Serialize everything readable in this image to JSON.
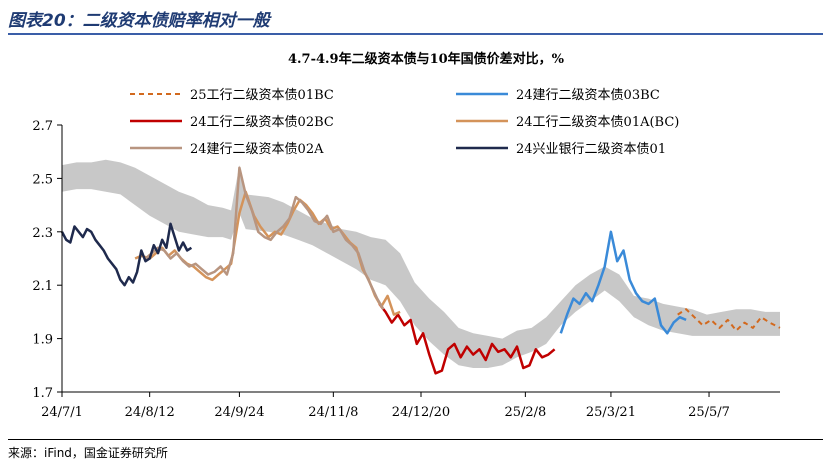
{
  "figure": {
    "title": "图表20：二级资本债赔率相对一般",
    "source": "来源：iFind，国金证券研究所"
  },
  "chart_data": {
    "type": "line",
    "title": "4.7-4.9年二级资本债与10年国债价差对比，%",
    "xlabel": "",
    "ylabel": "",
    "ylim": [
      1.7,
      2.7
    ],
    "yticks": [
      1.7,
      1.9,
      2.1,
      2.3,
      2.5,
      2.7
    ],
    "xlim": [
      "2024-07-01",
      "2025-06-10"
    ],
    "xticks": [
      "24/7/1",
      "24/8/12",
      "24/9/24",
      "24/11/8",
      "24/12/20",
      "25/2/8",
      "25/3/21",
      "25/5/7"
    ],
    "xtick_dates": [
      "2024-07-01",
      "2024-08-12",
      "2024-09-24",
      "2024-11-08",
      "2024-12-20",
      "2025-02-08",
      "2025-03-21",
      "2025-05-07"
    ],
    "grid": false,
    "legend_position": "top",
    "band": {
      "name": "",
      "color": "#c8c8c8",
      "x": [
        "2024-07-01",
        "2024-07-08",
        "2024-07-15",
        "2024-07-22",
        "2024-07-29",
        "2024-08-05",
        "2024-08-12",
        "2024-08-19",
        "2024-08-26",
        "2024-09-02",
        "2024-09-09",
        "2024-09-16",
        "2024-09-20",
        "2024-09-24",
        "2024-09-27",
        "2024-10-08",
        "2024-10-15",
        "2024-10-22",
        "2024-10-29",
        "2024-11-05",
        "2024-11-12",
        "2024-11-19",
        "2024-11-26",
        "2024-12-03",
        "2024-12-10",
        "2024-12-17",
        "2024-12-24",
        "2024-12-31",
        "2025-01-07",
        "2025-01-14",
        "2025-01-21",
        "2025-01-28",
        "2025-02-04",
        "2025-02-11",
        "2025-02-18",
        "2025-02-25",
        "2025-03-04",
        "2025-03-11",
        "2025-03-18",
        "2025-03-25",
        "2025-04-01",
        "2025-04-08",
        "2025-04-15",
        "2025-04-22",
        "2025-04-29",
        "2025-05-06",
        "2025-05-13",
        "2025-05-20",
        "2025-05-27",
        "2025-06-03",
        "2025-06-10"
      ],
      "upper": [
        2.55,
        2.56,
        2.56,
        2.57,
        2.56,
        2.54,
        2.51,
        2.48,
        2.45,
        2.43,
        2.4,
        2.39,
        2.38,
        2.55,
        2.44,
        2.43,
        2.41,
        2.38,
        2.35,
        2.33,
        2.31,
        2.3,
        2.28,
        2.27,
        2.22,
        2.11,
        2.05,
        2.0,
        1.94,
        1.92,
        1.91,
        1.9,
        1.93,
        1.94,
        1.98,
        2.04,
        2.1,
        2.14,
        2.17,
        2.14,
        2.06,
        2.05,
        2.03,
        2.02,
        2.01,
        1.99,
        2.0,
        2.01,
        2.01,
        2.0,
        2.0
      ],
      "lower": [
        2.45,
        2.46,
        2.46,
        2.45,
        2.44,
        2.4,
        2.36,
        2.33,
        2.3,
        2.29,
        2.28,
        2.28,
        2.27,
        2.37,
        2.31,
        2.3,
        2.29,
        2.27,
        2.25,
        2.22,
        2.19,
        2.16,
        2.12,
        2.1,
        2.04,
        1.95,
        1.89,
        1.84,
        1.8,
        1.79,
        1.79,
        1.8,
        1.83,
        1.85,
        1.88,
        1.95,
        2.0,
        2.04,
        2.08,
        2.04,
        1.98,
        1.95,
        1.93,
        1.92,
        1.91,
        1.91,
        1.91,
        1.91,
        1.91,
        1.91,
        1.91
      ]
    },
    "series": [
      {
        "name": "25工行二级资本债01BC",
        "color": "#d2691e",
        "dashed": true,
        "width": 2,
        "x": [
          "2025-04-22",
          "2025-04-26",
          "2025-04-30",
          "2025-05-04",
          "2025-05-08",
          "2025-05-12",
          "2025-05-16",
          "2025-05-20",
          "2025-05-24",
          "2025-05-28",
          "2025-06-01",
          "2025-06-05",
          "2025-06-10"
        ],
        "values": [
          1.99,
          2.01,
          1.98,
          1.95,
          1.97,
          1.94,
          1.97,
          1.93,
          1.96,
          1.94,
          1.98,
          1.96,
          1.94
        ]
      },
      {
        "name": "24建行二级资本债03BC",
        "color": "#3a8ad8",
        "dashed": false,
        "width": 2.5,
        "x": [
          "2025-02-25",
          "2025-02-28",
          "2025-03-03",
          "2025-03-06",
          "2025-03-09",
          "2025-03-12",
          "2025-03-15",
          "2025-03-18",
          "2025-03-21",
          "2025-03-24",
          "2025-03-27",
          "2025-03-30",
          "2025-04-02",
          "2025-04-05",
          "2025-04-08",
          "2025-04-11",
          "2025-04-14",
          "2025-04-17",
          "2025-04-20",
          "2025-04-23",
          "2025-04-26"
        ],
        "values": [
          1.92,
          1.99,
          2.05,
          2.03,
          2.07,
          2.04,
          2.1,
          2.17,
          2.3,
          2.19,
          2.23,
          2.12,
          2.07,
          2.04,
          2.03,
          2.05,
          1.95,
          1.92,
          1.96,
          1.98,
          1.97
        ]
      },
      {
        "name": "24工行二级资本债02BC",
        "color": "#c00000",
        "dashed": false,
        "width": 2.5,
        "x": [
          "2024-11-30",
          "2024-12-03",
          "2024-12-06",
          "2024-12-09",
          "2024-12-12",
          "2024-12-15",
          "2024-12-18",
          "2024-12-21",
          "2024-12-24",
          "2024-12-27",
          "2024-12-30",
          "2025-01-02",
          "2025-01-05",
          "2025-01-08",
          "2025-01-11",
          "2025-01-14",
          "2025-01-17",
          "2025-01-20",
          "2025-01-23",
          "2025-01-26",
          "2025-01-29",
          "2025-02-01",
          "2025-02-04",
          "2025-02-07",
          "2025-02-10",
          "2025-02-13",
          "2025-02-16",
          "2025-02-19",
          "2025-02-22"
        ],
        "values": [
          2.03,
          2.0,
          1.96,
          1.99,
          1.95,
          1.97,
          1.88,
          1.92,
          1.84,
          1.77,
          1.78,
          1.86,
          1.88,
          1.83,
          1.87,
          1.84,
          1.86,
          1.82,
          1.88,
          1.85,
          1.86,
          1.83,
          1.87,
          1.79,
          1.8,
          1.86,
          1.83,
          1.84,
          1.86
        ]
      },
      {
        "name": "24工行二级资本债01A(BC)",
        "color": "#d4935a",
        "dashed": false,
        "width": 2.5,
        "x": [
          "2024-08-05",
          "2024-08-08",
          "2024-08-12",
          "2024-08-15",
          "2024-08-18",
          "2024-08-21",
          "2024-08-24",
          "2024-08-27",
          "2024-08-30",
          "2024-09-02",
          "2024-09-05",
          "2024-09-08",
          "2024-09-11",
          "2024-09-14",
          "2024-09-17",
          "2024-09-20",
          "2024-09-24",
          "2024-09-27",
          "2024-10-01",
          "2024-10-04",
          "2024-10-08",
          "2024-10-11",
          "2024-10-14",
          "2024-10-17",
          "2024-10-20",
          "2024-10-23",
          "2024-10-26",
          "2024-10-29",
          "2024-11-01",
          "2024-11-04",
          "2024-11-07",
          "2024-11-10",
          "2024-11-13",
          "2024-11-16",
          "2024-11-19",
          "2024-11-22",
          "2024-11-25",
          "2024-11-28",
          "2024-12-01",
          "2024-12-04",
          "2024-12-07",
          "2024-12-10"
        ],
        "values": [
          2.2,
          2.21,
          2.2,
          2.22,
          2.24,
          2.21,
          2.23,
          2.2,
          2.18,
          2.17,
          2.15,
          2.13,
          2.12,
          2.14,
          2.16,
          2.18,
          2.37,
          2.45,
          2.36,
          2.32,
          2.28,
          2.3,
          2.29,
          2.33,
          2.38,
          2.42,
          2.4,
          2.37,
          2.33,
          2.35,
          2.31,
          2.32,
          2.29,
          2.26,
          2.24,
          2.16,
          2.12,
          2.06,
          2.02,
          2.06,
          1.99,
          2.0
        ]
      },
      {
        "name": "24建行二级资本债02A",
        "color": "#b89580",
        "dashed": false,
        "width": 2.5,
        "x": [
          "2024-08-10",
          "2024-08-13",
          "2024-08-16",
          "2024-08-19",
          "2024-08-22",
          "2024-08-25",
          "2024-08-28",
          "2024-08-31",
          "2024-09-03",
          "2024-09-06",
          "2024-09-09",
          "2024-09-12",
          "2024-09-15",
          "2024-09-18",
          "2024-09-21",
          "2024-09-24",
          "2024-09-27",
          "2024-09-30",
          "2024-10-03",
          "2024-10-06",
          "2024-10-09",
          "2024-10-12",
          "2024-10-15",
          "2024-10-18",
          "2024-10-21",
          "2024-10-24",
          "2024-10-27",
          "2024-10-30",
          "2024-11-02",
          "2024-11-05",
          "2024-11-08",
          "2024-11-11",
          "2024-11-14",
          "2024-11-17",
          "2024-11-20",
          "2024-11-23",
          "2024-11-26",
          "2024-11-29",
          "2024-12-02"
        ],
        "values": [
          2.2,
          2.22,
          2.24,
          2.23,
          2.2,
          2.22,
          2.19,
          2.17,
          2.18,
          2.16,
          2.14,
          2.15,
          2.17,
          2.14,
          2.22,
          2.54,
          2.44,
          2.38,
          2.3,
          2.28,
          2.27,
          2.3,
          2.32,
          2.35,
          2.43,
          2.41,
          2.38,
          2.34,
          2.33,
          2.36,
          2.3,
          2.31,
          2.27,
          2.25,
          2.22,
          2.15,
          2.1,
          2.05,
          2.01
        ]
      },
      {
        "name": "24兴业银行二级资本债01",
        "color": "#1f2a4d",
        "dashed": false,
        "width": 2.5,
        "x": [
          "2024-07-01",
          "2024-07-03",
          "2024-07-05",
          "2024-07-07",
          "2024-07-09",
          "2024-07-11",
          "2024-07-13",
          "2024-07-15",
          "2024-07-17",
          "2024-07-19",
          "2024-07-21",
          "2024-07-23",
          "2024-07-25",
          "2024-07-27",
          "2024-07-29",
          "2024-07-31",
          "2024-08-02",
          "2024-08-04",
          "2024-08-06",
          "2024-08-08",
          "2024-08-10",
          "2024-08-12",
          "2024-08-14",
          "2024-08-16",
          "2024-08-18",
          "2024-08-20",
          "2024-08-22",
          "2024-08-24",
          "2024-08-26",
          "2024-08-28",
          "2024-08-30",
          "2024-09-01"
        ],
        "values": [
          2.3,
          2.27,
          2.26,
          2.32,
          2.3,
          2.28,
          2.31,
          2.3,
          2.27,
          2.25,
          2.23,
          2.2,
          2.18,
          2.16,
          2.12,
          2.1,
          2.13,
          2.11,
          2.15,
          2.23,
          2.19,
          2.2,
          2.25,
          2.22,
          2.27,
          2.24,
          2.33,
          2.28,
          2.23,
          2.26,
          2.23,
          2.24
        ]
      }
    ]
  }
}
